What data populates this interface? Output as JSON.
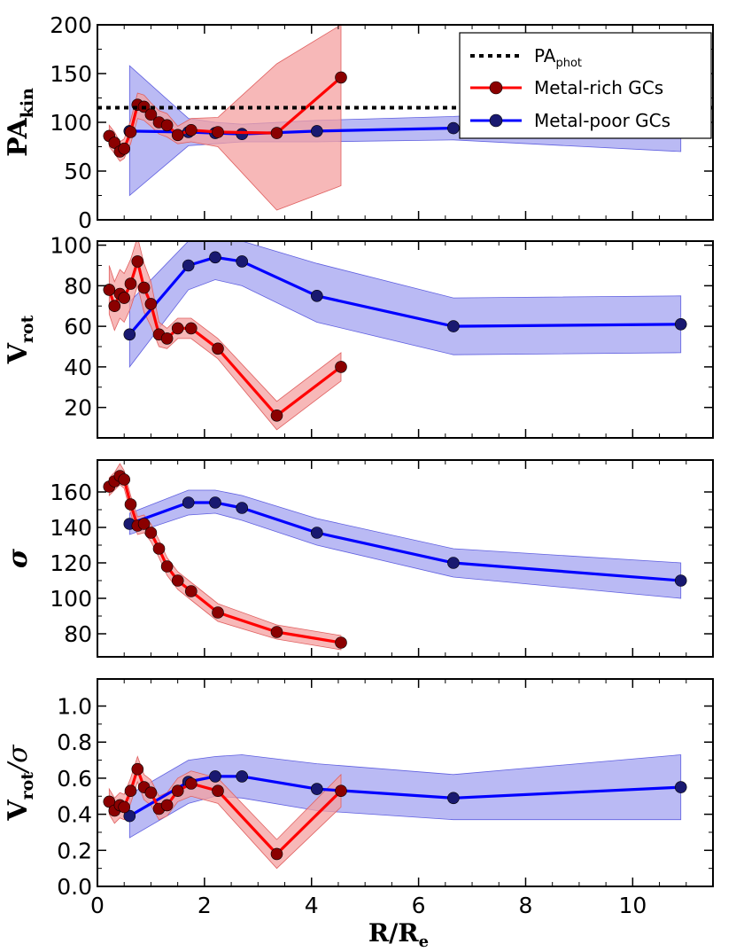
{
  "chart_data": {
    "type": "line",
    "xlabel": "R/R",
    "xlabel_sub": "e",
    "xlim": [
      0,
      11.5
    ],
    "x_ticks": [
      "0",
      "2",
      "4",
      "6",
      "8",
      "10"
    ],
    "x_tick_values": [
      0,
      2,
      4,
      6,
      8,
      10
    ],
    "colors": {
      "rich_line": "#ff0000",
      "rich_marker": "#8b0000",
      "rich_band": "#f4a0a0",
      "poor_line": "#0000ff",
      "poor_marker": "#191970",
      "poor_band": "#9c9cf0",
      "phot_line": "#000000"
    },
    "legend": {
      "position": "top-right",
      "phot": "PA",
      "phot_sub": "phot",
      "rich": "Metal-rich GCs",
      "poor": "Metal-poor GCs"
    },
    "panels": [
      {
        "id": "pa",
        "ylabel": "PA",
        "ylabel_sub": "kin",
        "ylim": [
          0,
          200
        ],
        "yticks": [
          0,
          50,
          100,
          150,
          200
        ],
        "ytick_labels": [
          "0",
          "50",
          "100",
          "150",
          "200"
        ],
        "phot_value": 115,
        "series": [
          {
            "name": "Metal-rich GCs",
            "x": [
              0.22,
              0.32,
              0.42,
              0.5,
              0.62,
              0.75,
              0.87,
              1.0,
              1.15,
              1.3,
              1.5,
              1.75,
              2.25,
              3.35,
              4.55
            ],
            "y": [
              86,
              79,
              70,
              73,
              90,
              118,
              116,
              108,
              100,
              97,
              87,
              92,
              90,
              89,
              146
            ],
            "lo": [
              75,
              68,
              60,
              63,
              78,
              104,
              102,
              96,
              88,
              85,
              78,
              80,
              75,
              10,
              35
            ],
            "hi": [
              97,
              90,
              80,
              83,
              102,
              130,
              128,
              120,
              112,
              109,
              96,
              104,
              105,
              160,
              200
            ]
          },
          {
            "name": "Metal-poor GCs",
            "x": [
              0.6,
              1.7,
              2.2,
              2.7,
              4.1,
              6.65,
              10.9
            ],
            "y": [
              91,
              90,
              89,
              88,
              91,
              94,
              94
            ],
            "lo": [
              25,
              76,
              78,
              80,
              80,
              82,
              70
            ],
            "hi": [
              158,
              104,
              100,
              98,
              102,
              106,
              118
            ]
          }
        ]
      },
      {
        "id": "vrot",
        "ylabel": "V",
        "ylabel_sub": "rot",
        "ylim": [
          5,
          102
        ],
        "yticks": [
          20,
          40,
          60,
          80,
          100
        ],
        "ytick_labels": [
          "20",
          "40",
          "60",
          "80",
          "100"
        ],
        "series": [
          {
            "name": "Metal-rich GCs",
            "x": [
              0.22,
              0.32,
              0.42,
              0.5,
              0.62,
              0.75,
              0.87,
              1.0,
              1.15,
              1.3,
              1.5,
              1.75,
              2.25,
              3.35,
              4.55
            ],
            "y": [
              78,
              70,
              76,
              74,
              81,
              92,
              79,
              71,
              56,
              54,
              59,
              59,
              49,
              16,
              40
            ],
            "lo": [
              66,
              58,
              64,
              62,
              69,
              80,
              67,
              60,
              50,
              49,
              54,
              54,
              44,
              9,
              33
            ],
            "hi": [
              90,
              82,
              88,
              86,
              93,
              104,
              91,
              82,
              62,
              59,
              64,
              64,
              54,
              23,
              47
            ]
          },
          {
            "name": "Metal-poor GCs",
            "x": [
              0.6,
              1.7,
              2.2,
              2.7,
              4.1,
              6.65,
              10.9
            ],
            "y": [
              56,
              90,
              94,
              92,
              75,
              60,
              61
            ],
            "lo": [
              40,
              78,
              83,
              80,
              62,
              46,
              47
            ],
            "hi": [
              72,
              102,
              104,
              102,
              91,
              74,
              75
            ]
          }
        ]
      },
      {
        "id": "sigma",
        "ylabel": "σ",
        "ylim": [
          67,
          178
        ],
        "yticks": [
          80,
          100,
          120,
          140,
          160
        ],
        "ytick_labels": [
          "80",
          "100",
          "120",
          "140",
          "160"
        ],
        "series": [
          {
            "name": "Metal-rich GCs",
            "x": [
              0.22,
              0.32,
              0.42,
              0.5,
              0.62,
              0.75,
              0.87,
              1.0,
              1.15,
              1.3,
              1.5,
              1.75,
              2.25,
              3.35,
              4.55
            ],
            "y": [
              163,
              166,
              169,
              167,
              153,
              141,
              142,
              137,
              128,
              118,
              110,
              104,
              92,
              81,
              75
            ],
            "lo": [
              158,
              161,
              164,
              162,
              148,
              136,
              137,
              132,
              123,
              113,
              105,
              99,
              87,
              77,
              71
            ],
            "hi": [
              168,
              171,
              176,
              172,
              158,
              146,
              147,
              142,
              133,
              123,
              115,
              109,
              97,
              85,
              79
            ]
          },
          {
            "name": "Metal-poor GCs",
            "x": [
              0.6,
              1.7,
              2.2,
              2.7,
              4.1,
              6.65,
              10.9
            ],
            "y": [
              142,
              154,
              154,
              151,
              137,
              120,
              110
            ],
            "lo": [
              136,
              147,
              148,
              144,
              130,
              112,
              100
            ],
            "hi": [
              148,
              161,
              161,
              158,
              145,
              128,
              120
            ]
          }
        ]
      },
      {
        "id": "vsigma",
        "ylabel": "V",
        "ylabel_sub": "rot",
        "ylabel_suffix": "/σ",
        "ylim": [
          0,
          1.15
        ],
        "yticks": [
          0.0,
          0.2,
          0.4,
          0.6,
          0.8,
          1.0
        ],
        "ytick_labels": [
          "0.0",
          "0.2",
          "0.4",
          "0.6",
          "0.8",
          "1.0"
        ],
        "series": [
          {
            "name": "Metal-rich GCs",
            "x": [
              0.22,
              0.32,
              0.42,
              0.5,
              0.62,
              0.75,
              0.87,
              1.0,
              1.15,
              1.3,
              1.5,
              1.75,
              2.25,
              3.35,
              4.55
            ],
            "y": [
              0.47,
              0.42,
              0.45,
              0.44,
              0.53,
              0.65,
              0.55,
              0.52,
              0.43,
              0.45,
              0.53,
              0.57,
              0.53,
              0.18,
              0.53
            ],
            "lo": [
              0.4,
              0.35,
              0.38,
              0.37,
              0.46,
              0.58,
              0.48,
              0.45,
              0.37,
              0.39,
              0.47,
              0.5,
              0.46,
              0.1,
              0.44
            ],
            "hi": [
              0.54,
              0.49,
              0.52,
              0.51,
              0.6,
              0.72,
              0.62,
              0.59,
              0.5,
              0.52,
              0.6,
              0.64,
              0.6,
              0.26,
              0.62
            ]
          },
          {
            "name": "Metal-poor GCs",
            "x": [
              0.6,
              1.7,
              2.2,
              2.7,
              4.1,
              6.65,
              10.9
            ],
            "y": [
              0.39,
              0.58,
              0.61,
              0.61,
              0.54,
              0.49,
              0.55
            ],
            "lo": [
              0.27,
              0.46,
              0.5,
              0.49,
              0.42,
              0.37,
              0.37
            ],
            "hi": [
              0.51,
              0.7,
              0.72,
              0.73,
              0.68,
              0.62,
              0.73
            ]
          }
        ]
      }
    ]
  }
}
